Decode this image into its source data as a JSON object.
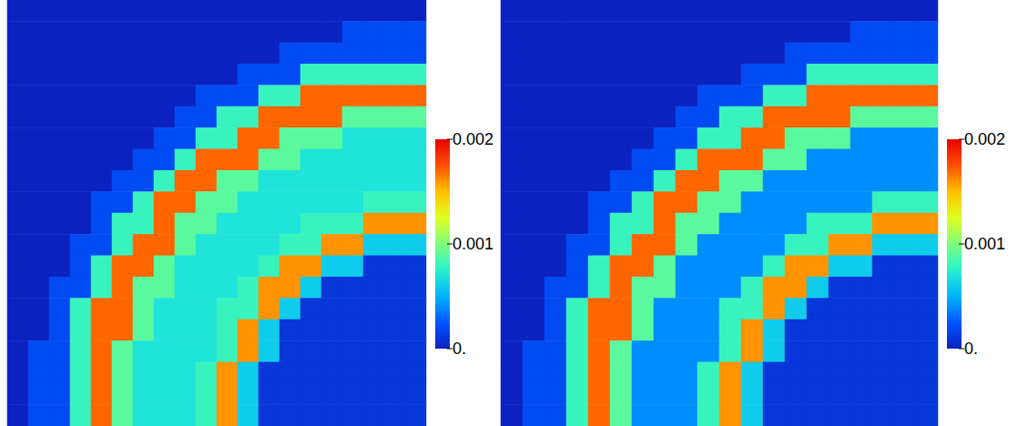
{
  "chart_data": [
    {
      "type": "heatmap",
      "tick_labels": false,
      "color_range": [
        0,
        0.002
      ],
      "color_ticks": [
        {
          "value": 0,
          "label": "0."
        },
        0.001,
        0.002
      ],
      "cells": [
        [
          0,
          0,
          0,
          0,
          0,
          0,
          0,
          0,
          0,
          0,
          0,
          0,
          0,
          0,
          0,
          0,
          0,
          0,
          0,
          0
        ],
        [
          0,
          0,
          0,
          0,
          0,
          0,
          0,
          0,
          0,
          0,
          0,
          0,
          0,
          0,
          0,
          0,
          0.0002,
          0.0002,
          0.0002,
          0.0002
        ],
        [
          0,
          0,
          0,
          0,
          0,
          0,
          0,
          0,
          0,
          0,
          0,
          0,
          0,
          0.0002,
          0.0002,
          0.0002,
          0.0002,
          0.0002,
          0.0002,
          0.0002
        ],
        [
          0,
          0,
          0,
          0,
          0,
          0,
          0,
          0,
          0,
          0,
          0,
          0.0002,
          0.0002,
          0.0002,
          0.0008,
          0.0008,
          0.0008,
          0.0008,
          0.0008,
          0.0008
        ],
        [
          0,
          0,
          0,
          0,
          0,
          0,
          0,
          0,
          0,
          0.0002,
          0.0002,
          0.0002,
          0.0008,
          0.0008,
          0.0017,
          0.0017,
          0.0017,
          0.0017,
          0.0017,
          0.0017
        ],
        [
          0,
          0,
          0,
          0,
          0,
          0,
          0,
          0,
          0.0002,
          0.0002,
          0.0008,
          0.0008,
          0.0017,
          0.0017,
          0.0017,
          0.0017,
          0.0009,
          0.0009,
          0.0009,
          0.0009
        ],
        [
          0,
          0,
          0,
          0,
          0,
          0,
          0,
          0.0002,
          0.0002,
          0.0008,
          0.0008,
          0.0017,
          0.0017,
          0.0009,
          0.0009,
          0.0009,
          0.0007,
          0.0007,
          0.0007,
          0.0007
        ],
        [
          0,
          0,
          0,
          0,
          0,
          0,
          0.0002,
          0.0002,
          0.0008,
          0.0017,
          0.0017,
          0.0017,
          0.0009,
          0.0009,
          0.0007,
          0.0007,
          0.0007,
          0.0007,
          0.0007,
          0.0007
        ],
        [
          0,
          0,
          0,
          0,
          0,
          0.0002,
          0.0002,
          0.0008,
          0.0017,
          0.0017,
          0.0009,
          0.0009,
          0.0007,
          0.0007,
          0.0007,
          0.0007,
          0.0007,
          0.0007,
          0.0007,
          0.0007
        ],
        [
          0,
          0,
          0,
          0,
          0.0002,
          0.0002,
          0.0008,
          0.0017,
          0.0017,
          0.0009,
          0.0009,
          0.0007,
          0.0007,
          0.0007,
          0.0007,
          0.0007,
          0.0007,
          0.0008,
          0.0008,
          0.0008
        ],
        [
          0,
          0,
          0,
          0,
          0.0002,
          0.0008,
          0.0008,
          0.0017,
          0.0009,
          0.0009,
          0.0007,
          0.0007,
          0.0007,
          0.0007,
          0.0008,
          0.0008,
          0.0008,
          0.0016,
          0.0016,
          0.0016
        ],
        [
          0,
          0,
          0,
          0.0002,
          0.0002,
          0.0008,
          0.0017,
          0.0017,
          0.0009,
          0.0007,
          0.0007,
          0.0007,
          0.0007,
          0.0008,
          0.0008,
          0.0016,
          0.0016,
          0.0006,
          0.0006,
          0.0006
        ],
        [
          0,
          0,
          0,
          0.0002,
          0.0008,
          0.0017,
          0.0017,
          0.0009,
          0.0007,
          0.0007,
          0.0007,
          0.0007,
          0.0008,
          0.0016,
          0.0016,
          0.0006,
          0.0006,
          0.0001,
          0.0001,
          0.0001
        ],
        [
          0,
          0,
          0.0002,
          0.0002,
          0.0008,
          0.0017,
          0.0009,
          0.0009,
          0.0007,
          0.0007,
          0.0007,
          0.0008,
          0.0016,
          0.0016,
          0.0006,
          0.0001,
          0.0001,
          0.0001,
          0.0001,
          0.0001
        ],
        [
          0,
          0,
          0.0002,
          0.0008,
          0.0017,
          0.0017,
          0.0009,
          0.0007,
          0.0007,
          0.0007,
          0.0008,
          0.0008,
          0.0016,
          0.0006,
          0.0001,
          0.0001,
          0.0001,
          0.0001,
          0.0001,
          0.0001
        ],
        [
          0,
          0,
          0.0002,
          0.0008,
          0.0017,
          0.0017,
          0.0009,
          0.0007,
          0.0007,
          0.0007,
          0.0008,
          0.0016,
          0.0006,
          0.0001,
          0.0001,
          0.0001,
          0.0001,
          0.0001,
          0.0001,
          0.0001
        ],
        [
          0,
          0.0002,
          0.0002,
          0.0008,
          0.0017,
          0.0009,
          0.0007,
          0.0007,
          0.0007,
          0.0007,
          0.0008,
          0.0016,
          0.0006,
          0.0001,
          0.0001,
          0.0001,
          0.0001,
          0.0001,
          0.0001,
          0.0001
        ],
        [
          0,
          0.0002,
          0.0002,
          0.0008,
          0.0017,
          0.0009,
          0.0007,
          0.0007,
          0.0007,
          0.0008,
          0.0016,
          0.0006,
          0.0001,
          0.0001,
          0.0001,
          0.0001,
          0.0001,
          0.0001,
          0.0001,
          0.0001
        ],
        [
          0,
          0.0002,
          0.0002,
          0.0008,
          0.0017,
          0.0009,
          0.0007,
          0.0007,
          0.0007,
          0.0008,
          0.0016,
          0.0006,
          0.0001,
          0.0001,
          0.0001,
          0.0001,
          0.0001,
          0.0001,
          0.0001,
          0.0001
        ],
        [
          0,
          0.0002,
          0.0002,
          0.0008,
          0.0017,
          0.0009,
          0.0007,
          0.0007,
          0.0007,
          0.0008,
          0.0016,
          0.0006,
          0.0001,
          0.0001,
          0.0001,
          0.0001,
          0.0001,
          0.0001,
          0.0001,
          0.0001
        ]
      ]
    },
    {
      "type": "heatmap",
      "tick_labels": false,
      "color_range": [
        0,
        0.002
      ],
      "color_ticks": [
        {
          "value": 0,
          "label": "0."
        },
        0.001,
        0.002
      ],
      "cells": [
        [
          0,
          0,
          0,
          0,
          0,
          0,
          0,
          0,
          0,
          0,
          0,
          0,
          0,
          0,
          0,
          0,
          0,
          0,
          0,
          0
        ],
        [
          0,
          0,
          0,
          0,
          0,
          0,
          0,
          0,
          0,
          0,
          0,
          0,
          0,
          0,
          0,
          0,
          0.0002,
          0.0002,
          0.0002,
          0.0002
        ],
        [
          0,
          0,
          0,
          0,
          0,
          0,
          0,
          0,
          0,
          0,
          0,
          0,
          0,
          0.0002,
          0.0002,
          0.0002,
          0.0002,
          0.0002,
          0.0002,
          0.0002
        ],
        [
          0,
          0,
          0,
          0,
          0,
          0,
          0,
          0,
          0,
          0,
          0,
          0.0002,
          0.0002,
          0.0002,
          0.0008,
          0.0008,
          0.0008,
          0.0008,
          0.0008,
          0.0008
        ],
        [
          0,
          0,
          0,
          0,
          0,
          0,
          0,
          0,
          0,
          0.0002,
          0.0002,
          0.0002,
          0.0008,
          0.0008,
          0.0017,
          0.0017,
          0.0017,
          0.0017,
          0.0017,
          0.0017
        ],
        [
          0,
          0,
          0,
          0,
          0,
          0,
          0,
          0,
          0.0002,
          0.0002,
          0.0008,
          0.0008,
          0.0017,
          0.0017,
          0.0017,
          0.0017,
          0.0009,
          0.0009,
          0.0009,
          0.0009
        ],
        [
          0,
          0,
          0,
          0,
          0,
          0,
          0,
          0.0002,
          0.0002,
          0.0008,
          0.0008,
          0.0017,
          0.0017,
          0.0009,
          0.0009,
          0.0009,
          0.0004,
          0.0004,
          0.0004,
          0.0004
        ],
        [
          0,
          0,
          0,
          0,
          0,
          0,
          0.0002,
          0.0002,
          0.0008,
          0.0017,
          0.0017,
          0.0017,
          0.0009,
          0.0009,
          0.0004,
          0.0004,
          0.0004,
          0.0004,
          0.0004,
          0.0004
        ],
        [
          0,
          0,
          0,
          0,
          0,
          0.0002,
          0.0002,
          0.0008,
          0.0017,
          0.0017,
          0.0009,
          0.0009,
          0.0004,
          0.0004,
          0.0004,
          0.0004,
          0.0004,
          0.0004,
          0.0004,
          0.0004
        ],
        [
          0,
          0,
          0,
          0,
          0.0002,
          0.0002,
          0.0008,
          0.0017,
          0.0017,
          0.0009,
          0.0009,
          0.0004,
          0.0004,
          0.0004,
          0.0004,
          0.0004,
          0.0004,
          0.0008,
          0.0008,
          0.0008
        ],
        [
          0,
          0,
          0,
          0,
          0.0002,
          0.0008,
          0.0008,
          0.0017,
          0.0009,
          0.0009,
          0.0004,
          0.0004,
          0.0004,
          0.0004,
          0.0008,
          0.0008,
          0.0008,
          0.0016,
          0.0016,
          0.0016
        ],
        [
          0,
          0,
          0,
          0.0002,
          0.0002,
          0.0008,
          0.0017,
          0.0017,
          0.0009,
          0.0004,
          0.0004,
          0.0004,
          0.0004,
          0.0008,
          0.0008,
          0.0016,
          0.0016,
          0.0006,
          0.0006,
          0.0006
        ],
        [
          0,
          0,
          0,
          0.0002,
          0.0008,
          0.0017,
          0.0017,
          0.0009,
          0.0004,
          0.0004,
          0.0004,
          0.0004,
          0.0008,
          0.0016,
          0.0016,
          0.0006,
          0.0006,
          0.0001,
          0.0001,
          0.0001
        ],
        [
          0,
          0,
          0.0002,
          0.0002,
          0.0008,
          0.0017,
          0.0009,
          0.0009,
          0.0004,
          0.0004,
          0.0004,
          0.0008,
          0.0016,
          0.0016,
          0.0006,
          0.0001,
          0.0001,
          0.0001,
          0.0001,
          0.0001
        ],
        [
          0,
          0,
          0.0002,
          0.0008,
          0.0017,
          0.0017,
          0.0009,
          0.0004,
          0.0004,
          0.0004,
          0.0008,
          0.0008,
          0.0016,
          0.0006,
          0.0001,
          0.0001,
          0.0001,
          0.0001,
          0.0001,
          0.0001
        ],
        [
          0,
          0,
          0.0002,
          0.0008,
          0.0017,
          0.0017,
          0.0009,
          0.0004,
          0.0004,
          0.0004,
          0.0008,
          0.0016,
          0.0006,
          0.0001,
          0.0001,
          0.0001,
          0.0001,
          0.0001,
          0.0001,
          0.0001
        ],
        [
          0,
          0.0002,
          0.0002,
          0.0008,
          0.0017,
          0.0009,
          0.0004,
          0.0004,
          0.0004,
          0.0004,
          0.0008,
          0.0016,
          0.0006,
          0.0001,
          0.0001,
          0.0001,
          0.0001,
          0.0001,
          0.0001,
          0.0001
        ],
        [
          0,
          0.0002,
          0.0002,
          0.0008,
          0.0017,
          0.0009,
          0.0004,
          0.0004,
          0.0004,
          0.0008,
          0.0016,
          0.0006,
          0.0001,
          0.0001,
          0.0001,
          0.0001,
          0.0001,
          0.0001,
          0.0001,
          0.0001
        ],
        [
          0,
          0.0002,
          0.0002,
          0.0008,
          0.0017,
          0.0009,
          0.0004,
          0.0004,
          0.0004,
          0.0008,
          0.0016,
          0.0006,
          0.0001,
          0.0001,
          0.0001,
          0.0001,
          0.0001,
          0.0001,
          0.0001,
          0.0001
        ],
        [
          0,
          0.0002,
          0.0002,
          0.0008,
          0.0017,
          0.0009,
          0.0004,
          0.0004,
          0.0004,
          0.0008,
          0.0016,
          0.0006,
          0.0001,
          0.0001,
          0.0001,
          0.0001,
          0.0001,
          0.0001,
          0.0001,
          0.0001
        ]
      ]
    }
  ]
}
